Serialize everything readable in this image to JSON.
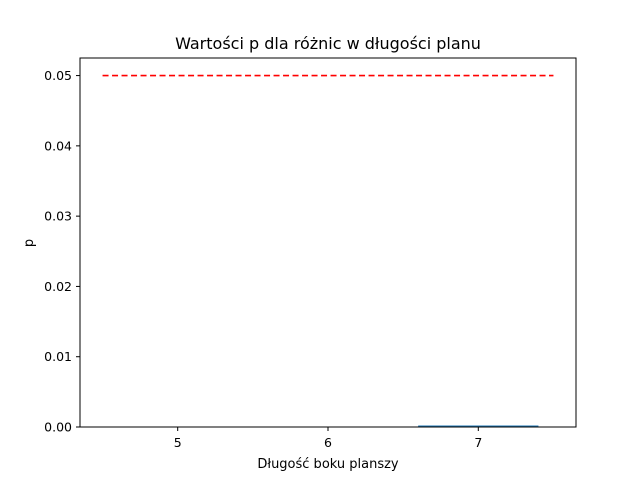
{
  "chart_data": {
    "type": "bar",
    "title": "Wartości p dla różnic w długości planu",
    "xlabel": "Długość boku planszy",
    "ylabel": "p",
    "categories": [
      "5",
      "6",
      "7"
    ],
    "x": [
      5,
      6,
      7
    ],
    "values": [
      0.0,
      0.0,
      0.0001
    ],
    "xlim": [
      4.35,
      7.65
    ],
    "ylim": [
      0.0,
      0.0525
    ],
    "yticks": [
      0.0,
      0.01,
      0.02,
      0.03,
      0.04,
      0.05
    ],
    "ytick_labels": [
      "0.00",
      "0.01",
      "0.02",
      "0.03",
      "0.04",
      "0.05"
    ],
    "bar_width": 0.8,
    "bar_color": "#1f77b4",
    "threshold": {
      "y": 0.05,
      "x_range": [
        4.5,
        7.5
      ],
      "style": "dashed",
      "color": "#ff0000"
    },
    "grid": false,
    "legend": "none"
  }
}
